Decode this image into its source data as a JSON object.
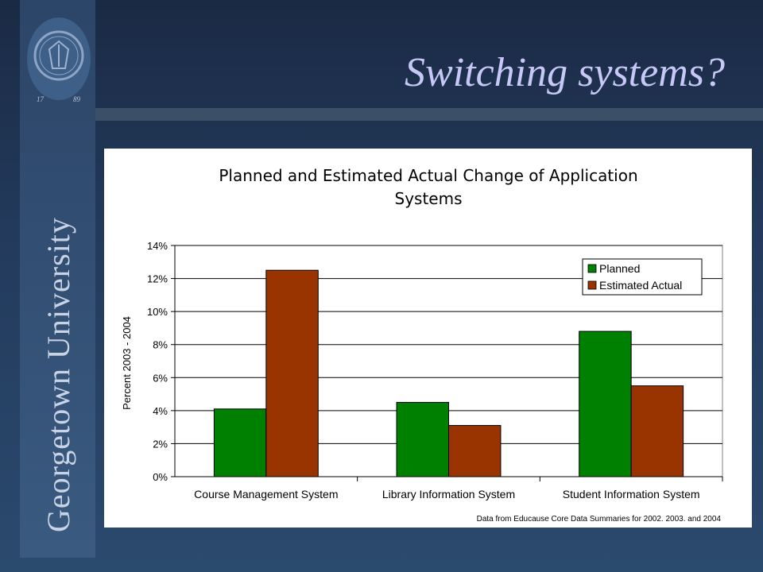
{
  "slide": {
    "title": "Switching systems?",
    "university": "Georgetown University",
    "seal_years": [
      "17",
      "89"
    ]
  },
  "colors": {
    "background": "#1f3352",
    "sidebar": "#34527a",
    "title": "#c8c8f8",
    "planned": "#008000",
    "estimated": "#993300"
  },
  "chart_data": {
    "type": "bar",
    "title_lines": [
      "Planned and Estimated Actual Change of Application",
      "Systems"
    ],
    "ylabel": "Percent 2003 - 2004",
    "xlabel": "",
    "categories": [
      "Course Management System",
      "Library Information System",
      "Student Information System"
    ],
    "series": [
      {
        "name": "Planned",
        "color": "#008000",
        "values": [
          4.1,
          4.5,
          8.8
        ]
      },
      {
        "name": "Estimated Actual",
        "color": "#993300",
        "values": [
          12.5,
          3.1,
          5.5
        ]
      }
    ],
    "ylim": [
      0,
      14
    ],
    "yticks": [
      "0%",
      "2%",
      "4%",
      "6%",
      "8%",
      "10%",
      "12%",
      "14%"
    ],
    "grid": true,
    "legend": "top-right",
    "source_note": "Data from Educause Core Data Summaries for 2002. 2003. and 2004"
  }
}
